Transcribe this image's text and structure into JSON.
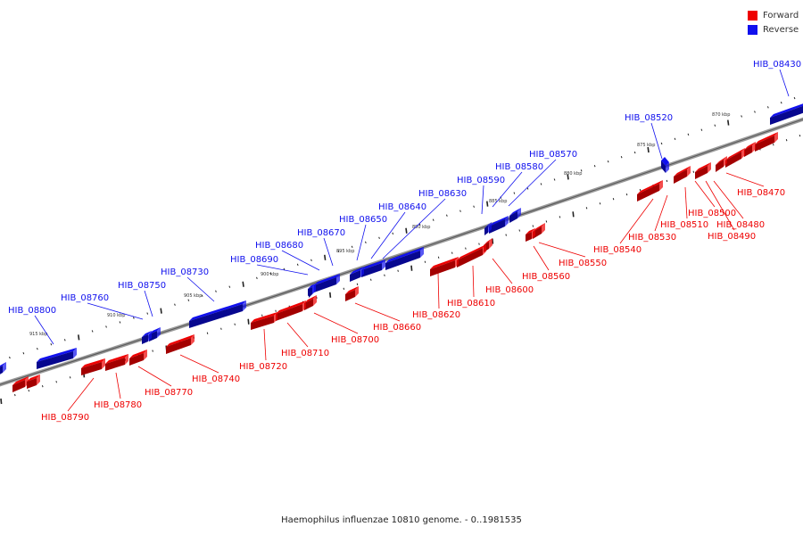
{
  "colors": {
    "forward": "#ee0000",
    "reverse": "#1010ee",
    "track": "#888888",
    "tick": "#222222"
  },
  "legend": [
    {
      "label": "Forward",
      "color": "#ee0000"
    },
    {
      "label": "Reverse",
      "color": "#1010ee"
    }
  ],
  "footer": "Haemophilus influenzae 10810 genome. - 0..1981535",
  "scale_labels": [
    "870 kbp",
    "875 kbp",
    "880 kbp",
    "885 kbp",
    "890 kbp",
    "895 kbp",
    "900 kbp",
    "905 kbp",
    "910 kbp",
    "915 kbp"
  ],
  "genes": [
    {
      "name": "HIB_08430",
      "strand": "reverse"
    },
    {
      "name": "HIB_08470",
      "strand": "forward"
    },
    {
      "name": "HIB_08480",
      "strand": "forward"
    },
    {
      "name": "HIB_08490",
      "strand": "forward"
    },
    {
      "name": "HIB_08500",
      "strand": "forward"
    },
    {
      "name": "HIB_08510",
      "strand": "forward"
    },
    {
      "name": "HIB_08520",
      "strand": "reverse"
    },
    {
      "name": "HIB_08530",
      "strand": "forward"
    },
    {
      "name": "HIB_08540",
      "strand": "forward"
    },
    {
      "name": "HIB_08550",
      "strand": "forward"
    },
    {
      "name": "HIB_08560",
      "strand": "forward"
    },
    {
      "name": "HIB_08570",
      "strand": "reverse"
    },
    {
      "name": "HIB_08580",
      "strand": "reverse"
    },
    {
      "name": "HIB_08590",
      "strand": "reverse"
    },
    {
      "name": "HIB_08600",
      "strand": "forward"
    },
    {
      "name": "HIB_08610",
      "strand": "forward"
    },
    {
      "name": "HIB_08620",
      "strand": "forward"
    },
    {
      "name": "HIB_08630",
      "strand": "reverse"
    },
    {
      "name": "HIB_08640",
      "strand": "reverse"
    },
    {
      "name": "HIB_08650",
      "strand": "reverse"
    },
    {
      "name": "HIB_08660",
      "strand": "forward"
    },
    {
      "name": "HIB_08670",
      "strand": "reverse"
    },
    {
      "name": "HIB_08680",
      "strand": "reverse"
    },
    {
      "name": "HIB_08690",
      "strand": "reverse"
    },
    {
      "name": "HIB_08700",
      "strand": "forward"
    },
    {
      "name": "HIB_08710",
      "strand": "forward"
    },
    {
      "name": "HIB_08720",
      "strand": "forward"
    },
    {
      "name": "HIB_08730",
      "strand": "reverse"
    },
    {
      "name": "HIB_08740",
      "strand": "forward"
    },
    {
      "name": "HIB_08750",
      "strand": "reverse"
    },
    {
      "name": "HIB_08760",
      "strand": "reverse"
    },
    {
      "name": "HIB_08770",
      "strand": "forward"
    },
    {
      "name": "HIB_08780",
      "strand": "forward"
    },
    {
      "name": "HIB_08790",
      "strand": "forward"
    },
    {
      "name": "HIB_08800",
      "strand": "reverse"
    }
  ]
}
